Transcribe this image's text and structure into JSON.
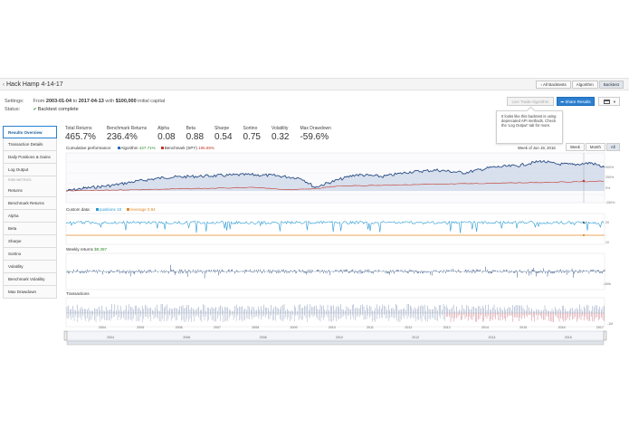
{
  "header": {
    "title": "Hack Hamp 4-14-17",
    "nav": [
      "All Backtests",
      "Algorithm",
      "Backtest"
    ],
    "active_nav": 2
  },
  "settings": {
    "label": "Settings:",
    "from_word": "From",
    "start": "2003-01-04",
    "to_word": "to",
    "end": "2017-04-13",
    "with_word": "with",
    "capital": "$100,000",
    "capital_suffix": "initial capital"
  },
  "status": {
    "label": "Status:",
    "value": "Backtest complete"
  },
  "actions": {
    "live": "Live Trade Algorithm",
    "share": "Share Results"
  },
  "tooltip": {
    "text": "It looks like this backtest is using deprecated API methods. Check the 'Log Output' tab for more."
  },
  "sidebar": {
    "items": [
      "Results Overview",
      "Transaction Details",
      "Daily Positions & Gains",
      "Log Output"
    ],
    "risk_header": "RISK METRICS",
    "risk_items": [
      "Returns",
      "Benchmark Returns",
      "Alpha",
      "Beta",
      "Sharpe",
      "Sortino",
      "Volatility",
      "Benchmark Volatility",
      "Max Drawdown"
    ]
  },
  "metrics": [
    {
      "label": "Total Returns",
      "value": "465.7%"
    },
    {
      "label": "Benchmark Returns",
      "value": "236.4%"
    },
    {
      "label": "Alpha",
      "value": "0.08"
    },
    {
      "label": "Beta",
      "value": "0.88"
    },
    {
      "label": "Sharpe",
      "value": "0.54"
    },
    {
      "label": "Sortino",
      "value": "0.75"
    },
    {
      "label": "Volatility",
      "value": "0.32"
    },
    {
      "label": "Max Drawdown",
      "value": "-59.6%"
    }
  ],
  "performance": {
    "label": "Cumulative performance:",
    "algo_name": "Algorithm",
    "algo_value": "427.71%",
    "bench_name": "Benchmark (SPY)",
    "bench_value": "195.69%",
    "week_of": "Week of Jun 19, 2016",
    "ranges": [
      "Week",
      "Month",
      "All"
    ],
    "active_range": 2,
    "y_labels": [
      "500%",
      "250%",
      "0%",
      "-250%"
    ]
  },
  "custom": {
    "label": "Custom data:",
    "positions_name": "positions",
    "positions_value": "10",
    "leverage_name": "leverage",
    "leverage_value": "0.84",
    "y_labels": [
      "20",
      "10"
    ]
  },
  "weekly": {
    "label": "Weekly returns",
    "value": "$9,397",
    "y_labels": [
      "-150k"
    ]
  },
  "transactions": {
    "label": "Transactions",
    "y_labels": [
      "-1M"
    ]
  },
  "x_axis": [
    "2004",
    "2005",
    "2006",
    "2007",
    "2008",
    "2009",
    "2010",
    "2011",
    "2012",
    "2013",
    "2014",
    "2015",
    "2016",
    "2017"
  ],
  "navigator_axis": [
    "2004",
    "2006",
    "2008",
    "2010",
    "2012",
    "2014",
    "2016"
  ],
  "colors": {
    "algo": "#2b4f86",
    "bench": "#c0392b",
    "positions": "#2a9ad4",
    "leverage": "#e08a2a",
    "accent": "#2b7fd0"
  }
}
